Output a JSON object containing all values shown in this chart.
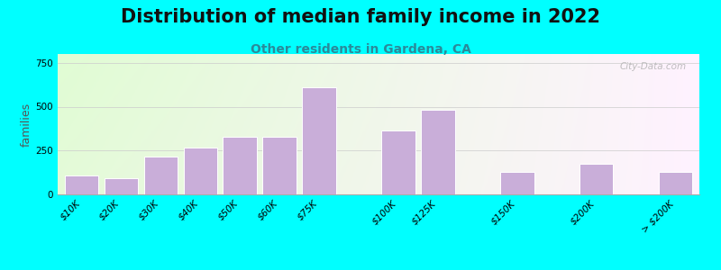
{
  "title": "Distribution of median family income in 2022",
  "subtitle": "Other residents in Gardena, CA",
  "ylabel": "families",
  "categories": [
    "$10K",
    "$20K",
    "$30K",
    "$40K",
    "$50K",
    "$60K",
    "$75K",
    "$100K",
    "$125K",
    "$150K",
    "$200K",
    "> $200K"
  ],
  "values": [
    110,
    90,
    215,
    265,
    330,
    330,
    610,
    365,
    480,
    130,
    175,
    130
  ],
  "bar_widths": [
    1,
    1,
    1,
    1,
    1,
    1,
    1,
    1,
    1,
    1,
    1,
    1
  ],
  "bar_positions": [
    0,
    1,
    2,
    3,
    4,
    5,
    6,
    8,
    9,
    11,
    13,
    15
  ],
  "bar_color": "#c9aed9",
  "bar_edge_color": "#ffffff",
  "background_outer": "#00ffff",
  "title_color": "#111111",
  "subtitle_color": "#2a8a9a",
  "ylabel_color": "#555555",
  "yticks": [
    0,
    250,
    500,
    750
  ],
  "ylim": [
    0,
    800
  ],
  "watermark": "City-Data.com",
  "title_fontsize": 15,
  "subtitle_fontsize": 10,
  "ylabel_fontsize": 9,
  "tick_fontsize": 7.5
}
